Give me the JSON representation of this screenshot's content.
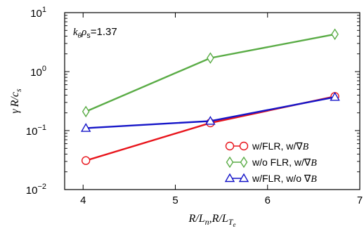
{
  "chart_data": {
    "type": "line",
    "xlabel": {
      "main": "R/L",
      "sub1": "n",
      "mid": ",R/L",
      "sub2": "T",
      "sub3": "e"
    },
    "ylabel": {
      "gamma": "γ",
      "main": "R/c",
      "sub": "s"
    },
    "xlim": [
      3.8,
      7.0
    ],
    "ylim": [
      0.01,
      10
    ],
    "yscale": "log",
    "x_ticks": [
      "4",
      "5",
      "6",
      "7"
    ],
    "y_ticks": [
      {
        "base": "10",
        "exp": "1"
      },
      {
        "base": "10",
        "exp": "0"
      },
      {
        "base": "10",
        "exp": "−1"
      },
      {
        "base": "10",
        "exp": "−2"
      }
    ],
    "grid": false,
    "annotation": {
      "k": "k",
      "sub1": "θ",
      "rho": "ρ",
      "sub2": "s",
      "value": "=1.37"
    },
    "legend_position": "bottom-right",
    "series": [
      {
        "name": "w/FLR, w/∇B",
        "legend_main": "w/FLR, w/∇",
        "legend_it": "B",
        "color": "#e8141b",
        "marker": "circle",
        "x": [
          4.03,
          5.38,
          6.73
        ],
        "y": [
          0.031,
          0.135,
          0.38
        ]
      },
      {
        "name": "w/o FLR, w/∇B",
        "legend_main": "w/o FLR, w/∇",
        "legend_it": "B",
        "color": "#5aac46",
        "marker": "diamond",
        "x": [
          4.03,
          5.38,
          6.73
        ],
        "y": [
          0.21,
          1.7,
          4.3
        ]
      },
      {
        "name": "w/FLR, w/o ∇B",
        "legend_main": "w/FLR, w/o ∇",
        "legend_it": "B",
        "color": "#1515c8",
        "marker": "triangle",
        "x": [
          4.03,
          5.38,
          6.73
        ],
        "y": [
          0.11,
          0.145,
          0.37
        ]
      }
    ]
  }
}
